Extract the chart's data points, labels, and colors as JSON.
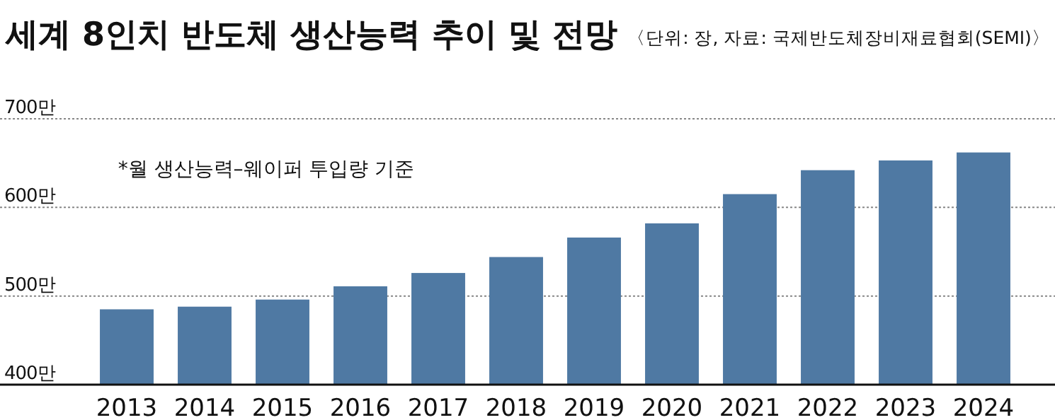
{
  "chart_data": {
    "type": "bar",
    "title": "세계 8인치 반도체 생산능력 추이 및 전망",
    "subtitle": "〈단위: 장, 자료: 국제반도체장비재료협회(SEMI)〉",
    "annotations": [
      "*월 생산능력–웨이퍼 투입량 기준"
    ],
    "categories": [
      "2013",
      "2014",
      "2015",
      "2016",
      "2017",
      "2018",
      "2019",
      "2020",
      "2021",
      "2022",
      "2023",
      "2024"
    ],
    "series": [
      {
        "color": "#4f79a3",
        "values": [
          485,
          488,
          496,
          511,
          526,
          544,
          566,
          582,
          615,
          642,
          653,
          662
        ]
      }
    ],
    "ylim": [
      400,
      700
    ],
    "yticks": [
      {
        "value": 400,
        "label": "400만"
      },
      {
        "value": 500,
        "label": "500만"
      },
      {
        "value": 600,
        "label": "600만"
      },
      {
        "value": 700,
        "label": "700만"
      }
    ],
    "grid": "y"
  }
}
